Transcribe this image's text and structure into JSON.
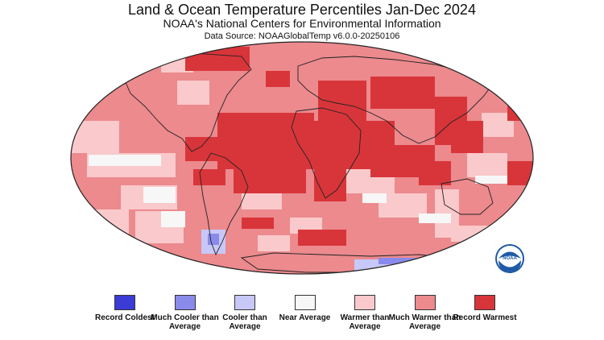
{
  "map": {
    "title": "Land & Ocean Temperature Percentiles Jan-Dec 2024",
    "subtitle": "NOAA's National Centers for Environmental Information",
    "source": "Data Source: NOAAGlobalTemp v6.0.0-20250106",
    "logo": "NOAA",
    "colors": {
      "record_coldest": "#3b3bd6",
      "much_cooler": "#8a8aea",
      "cooler": "#c8c8f8",
      "near": "#f7f7f7",
      "warmer": "#f9c9cb",
      "much_warmer": "#ec8a8e",
      "record_warmest": "#d8353a"
    },
    "legend": [
      {
        "label": "Record Coldest",
        "color": "#3b3bd6"
      },
      {
        "label": "Much Cooler than Average",
        "color": "#8a8aea"
      },
      {
        "label": "Cooler than Average",
        "color": "#c8c8f8"
      },
      {
        "label": "Near Average",
        "color": "#f7f7f7"
      },
      {
        "label": "Warmer than Average",
        "color": "#f9c9cb"
      },
      {
        "label": "Much Warmer than Average",
        "color": "#ec8a8e"
      },
      {
        "label": "Record Warmest",
        "color": "#d8353a"
      }
    ]
  }
}
